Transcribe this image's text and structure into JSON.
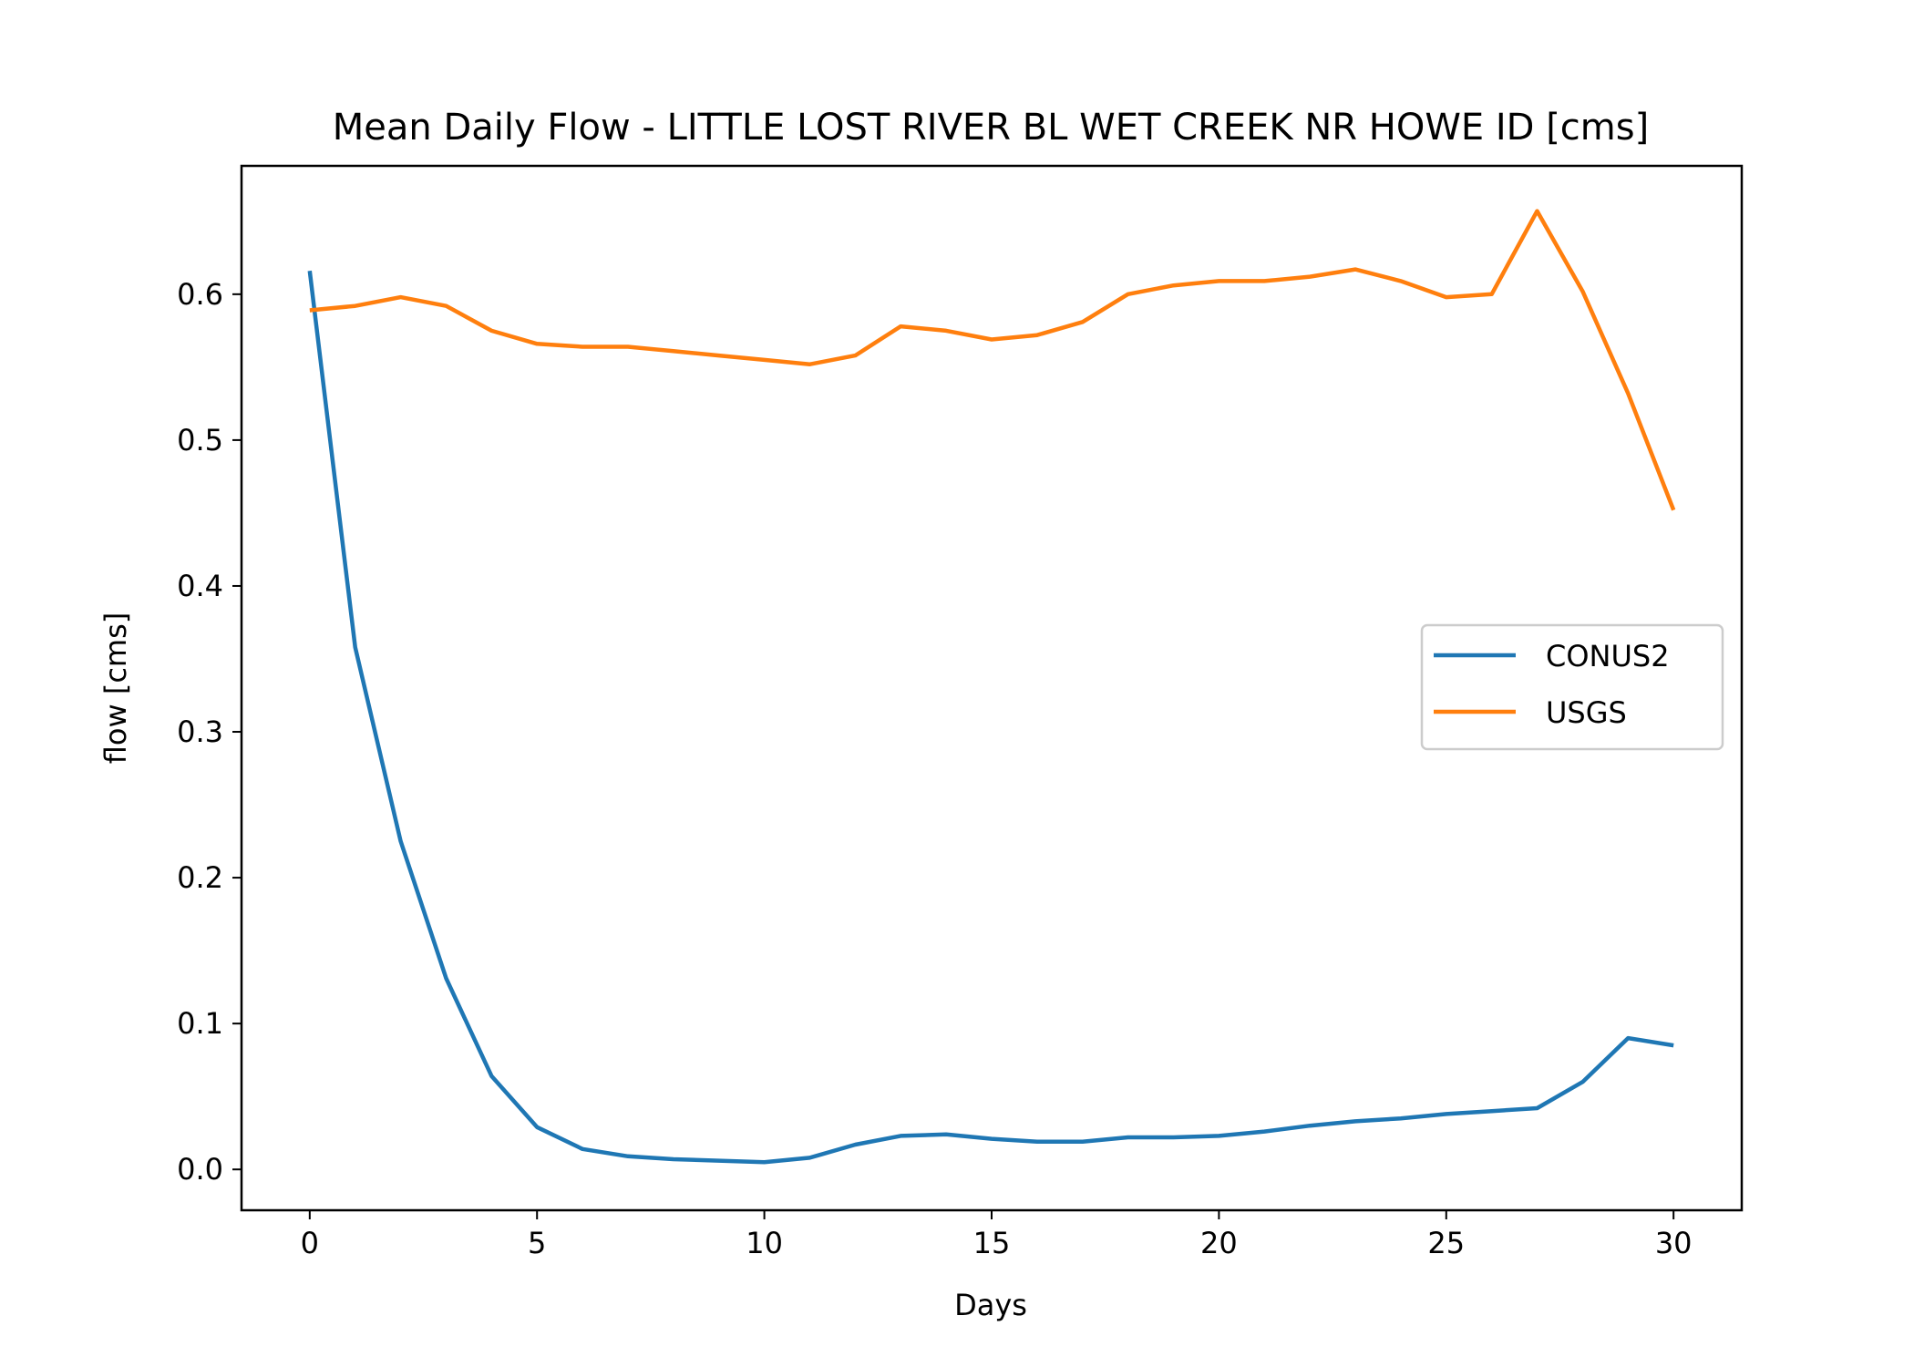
{
  "chart_data": {
    "type": "line",
    "title": "Mean Daily Flow - LITTLE LOST RIVER BL WET CREEK NR HOWE ID [cms]",
    "xlabel": "Days",
    "ylabel": "flow [cms]",
    "xlim": [
      -1.5,
      31.5
    ],
    "ylim": [
      -0.028,
      0.688
    ],
    "xticks": [
      0,
      5,
      10,
      15,
      20,
      25,
      30
    ],
    "xtick_labels": [
      "0",
      "5",
      "10",
      "15",
      "20",
      "25",
      "30"
    ],
    "yticks": [
      0.0,
      0.1,
      0.2,
      0.3,
      0.4,
      0.5,
      0.6
    ],
    "ytick_labels": [
      "0.0",
      "0.1",
      "0.2",
      "0.3",
      "0.4",
      "0.5",
      "0.6"
    ],
    "grid": false,
    "legend_position": "center-right",
    "x": [
      0,
      1,
      2,
      3,
      4,
      5,
      6,
      7,
      8,
      9,
      10,
      11,
      12,
      13,
      14,
      15,
      16,
      17,
      18,
      19,
      20,
      21,
      22,
      23,
      24,
      25,
      26,
      27,
      28,
      29,
      30
    ],
    "series": [
      {
        "name": "CONUS2",
        "color": "#1f77b4",
        "values": [
          0.616,
          0.358,
          0.225,
          0.131,
          0.064,
          0.029,
          0.014,
          0.009,
          0.007,
          0.006,
          0.005,
          0.008,
          0.017,
          0.023,
          0.024,
          0.021,
          0.019,
          0.019,
          0.022,
          0.022,
          0.023,
          0.026,
          0.03,
          0.033,
          0.035,
          0.038,
          0.04,
          0.042,
          0.06,
          0.09,
          0.085
        ]
      },
      {
        "name": "USGS",
        "color": "#ff7f0e",
        "values": [
          0.589,
          0.592,
          0.598,
          0.592,
          0.575,
          0.566,
          0.564,
          0.564,
          0.561,
          0.558,
          0.555,
          0.552,
          0.558,
          0.578,
          0.575,
          0.569,
          0.572,
          0.581,
          0.6,
          0.606,
          0.609,
          0.609,
          0.612,
          0.617,
          0.609,
          0.598,
          0.6,
          0.657,
          0.602,
          0.532,
          0.452
        ]
      }
    ]
  }
}
